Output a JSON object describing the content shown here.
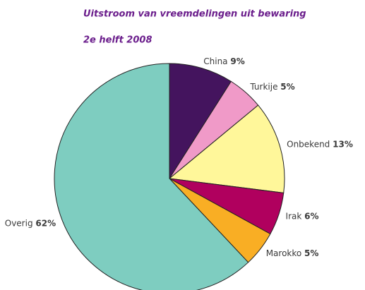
{
  "chart_data": {
    "type": "pie",
    "title": "Uitstroom van vreemdelingen uit bewaring",
    "subtitle": "2e helft 2008",
    "categories": [
      "China",
      "Turkije",
      "Onbekend",
      "Irak",
      "Marokko",
      "Overig"
    ],
    "values": [
      9,
      5,
      13,
      6,
      5,
      62
    ],
    "value_labels": [
      "9%",
      "5%",
      "13%",
      "6%",
      "5%",
      "62%"
    ],
    "colors": [
      "#44145e",
      "#f09ac8",
      "#fff79a",
      "#b0005e",
      "#f9ae24",
      "#7ecdc0"
    ]
  }
}
